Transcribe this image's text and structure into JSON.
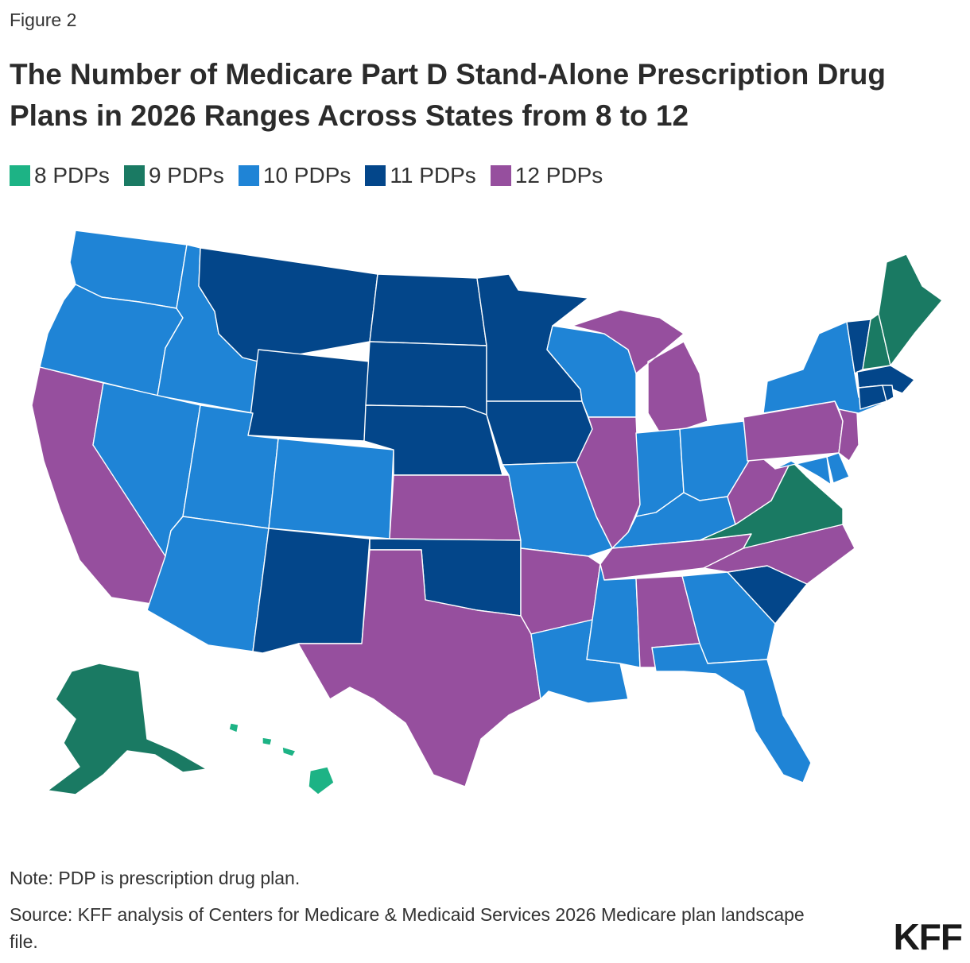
{
  "figure_label": "Figure 2",
  "title": "The Number of Medicare Part D Stand-Alone Prescription Drug Plans in 2026 Ranges Across States from 8 to 12",
  "legend": [
    {
      "label": "8 PDPs",
      "color": "#1db385"
    },
    {
      "label": "9 PDPs",
      "color": "#1a7a63"
    },
    {
      "label": "10 PDPs",
      "color": "#1f84d6"
    },
    {
      "label": "11 PDPs",
      "color": "#03468a"
    },
    {
      "label": "12 PDPs",
      "color": "#964f9e"
    }
  ],
  "map_data": {
    "values": {
      "HI": 8,
      "AK": 9,
      "ME": 9,
      "NH": 9,
      "VA": 9,
      "WA": 10,
      "OR": 10,
      "ID": 10,
      "NV": 10,
      "UT": 10,
      "AZ": 10,
      "CO": 10,
      "WI": 10,
      "MO": 10,
      "IN": 10,
      "OH": 10,
      "KY": 10,
      "NY": 10,
      "MD": 10,
      "DE": 10,
      "LA": 10,
      "MS": 10,
      "GA": 10,
      "FL": 10,
      "MT": 11,
      "WY": 11,
      "ND": 11,
      "SD": 11,
      "NE": 11,
      "MN": 11,
      "IA": 11,
      "NM": 11,
      "OK": 11,
      "SC": 11,
      "VT": 11,
      "MA": 11,
      "CT": 11,
      "RI": 11,
      "CA": 12,
      "KS": 12,
      "TX": 12,
      "AR": 12,
      "AL": 12,
      "TN": 12,
      "NC": 12,
      "WV": 12,
      "PA": 12,
      "NJ": 12,
      "IL": 12,
      "MI": 12
    },
    "color_by_value": {
      "8": "#1db385",
      "9": "#1a7a63",
      "10": "#1f84d6",
      "11": "#03468a",
      "12": "#964f9e"
    }
  },
  "note": "Note: PDP is prescription drug plan.",
  "source": "Source: KFF analysis of Centers for Medicare & Medicaid Services 2026 Medicare plan landscape file.",
  "logo": "KFF"
}
